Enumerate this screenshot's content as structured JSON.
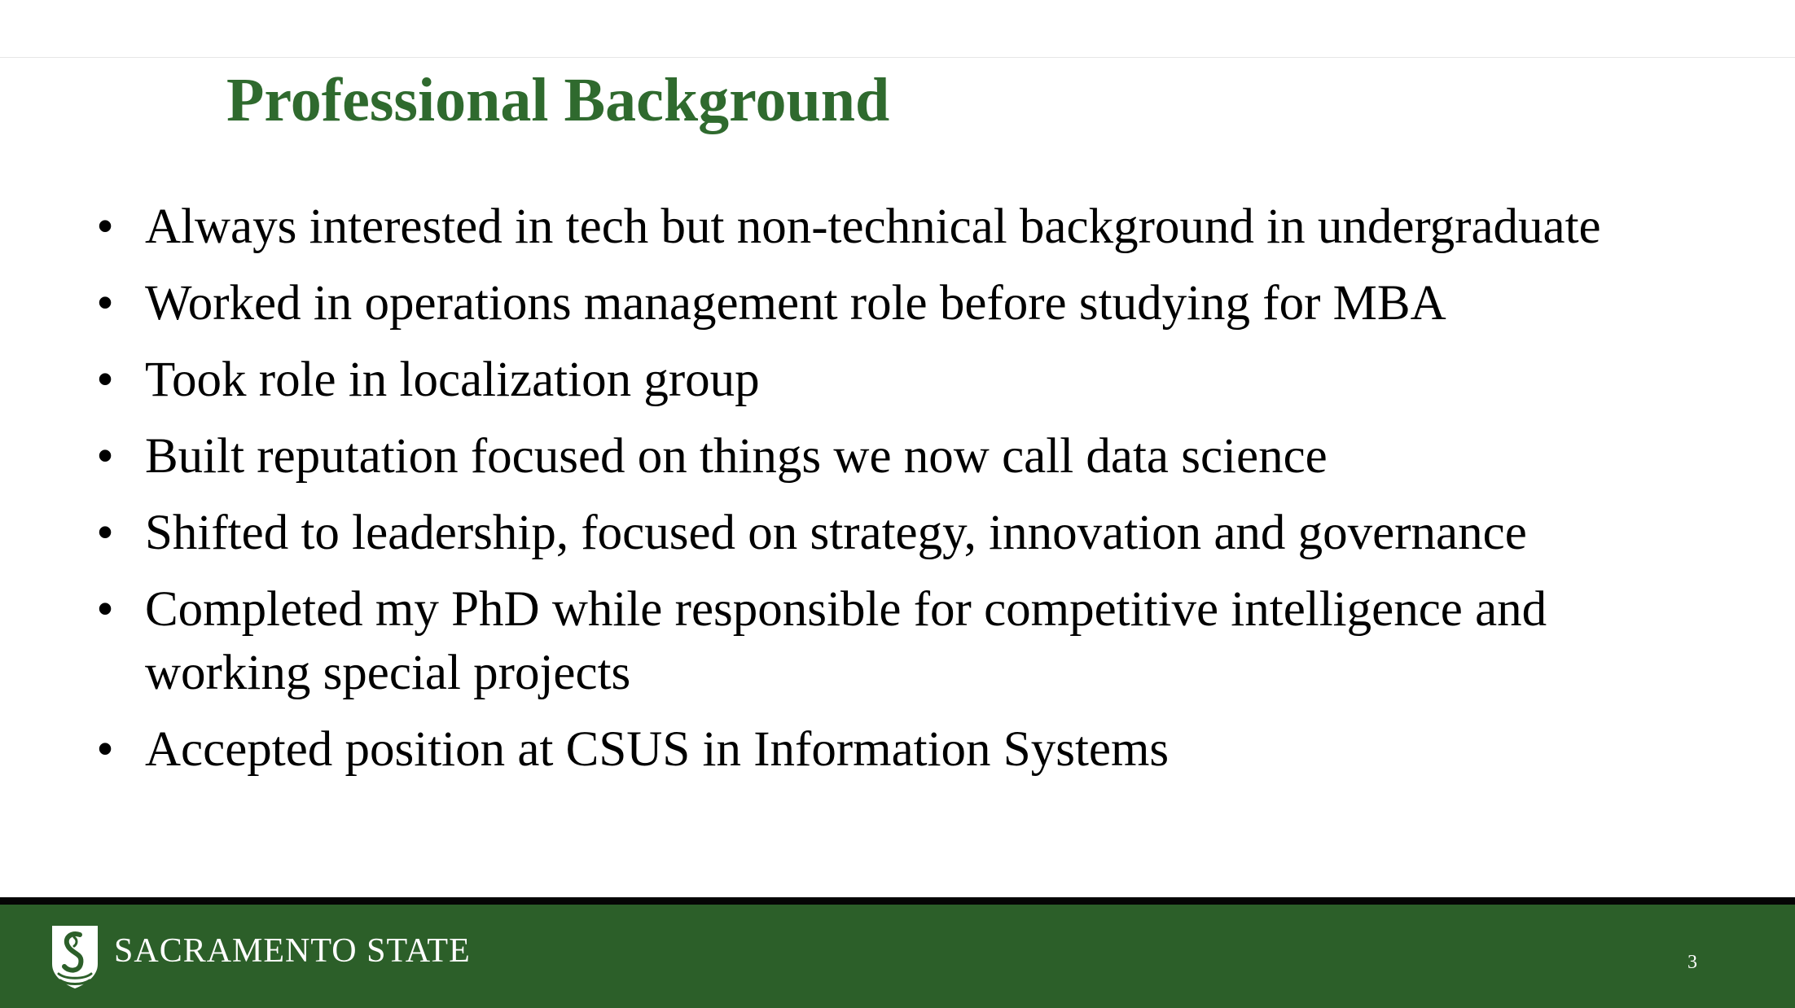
{
  "slide": {
    "title": "Professional Background",
    "bullet_symbol": "•",
    "bullets": [
      "Always interested in tech but non-technical background in undergraduate",
      "Worked in operations management role before studying for MBA",
      "Took role in localization group",
      "Built reputation focused on things we now call data science",
      "Shifted to leadership, focused on strategy, innovation and governance",
      "Completed my PhD while responsible for competitive intelligence and working special projects",
      "Accepted position at CSUS in Information Systems"
    ],
    "page_number": "3"
  },
  "footer": {
    "brand_text": "SACRAMENTO STATE",
    "logo_icon": "sacramento-state-logo-icon"
  },
  "colors": {
    "title": "#2f6a2e",
    "footer_background": "#2c5f29",
    "footer_border": "#050505",
    "text": "#000000"
  }
}
